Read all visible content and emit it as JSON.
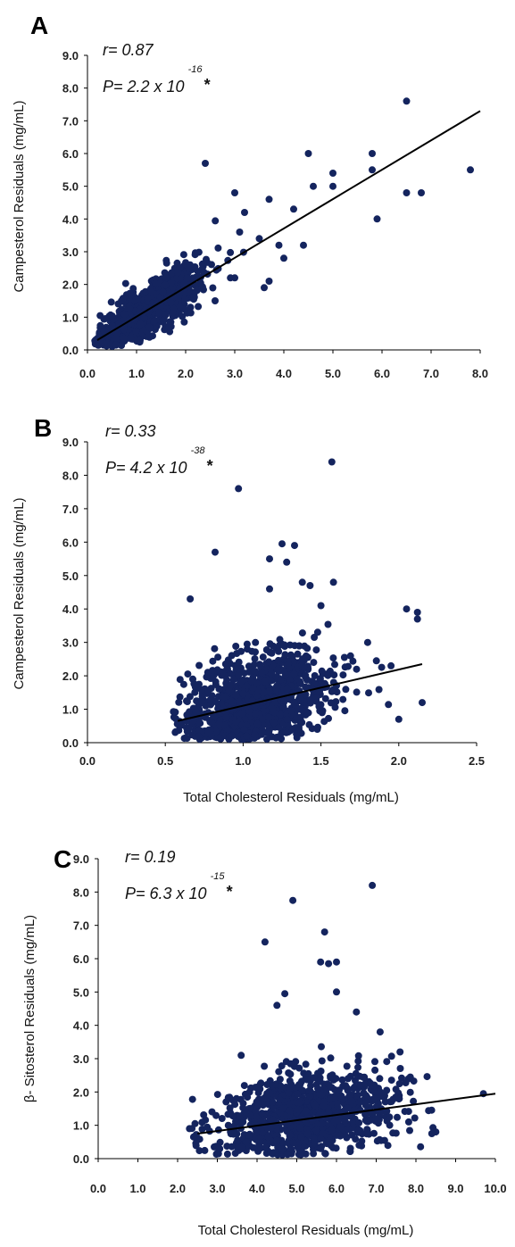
{
  "chart_data": [
    {
      "type": "scatter",
      "panel_label": "A",
      "ylabel": "Campesterol Residuals (mg/mL)",
      "xlabel": "",
      "xlim": [
        0.0,
        8.0
      ],
      "ylim": [
        0.0,
        9.0
      ],
      "xticks": [
        "0.0",
        "1.0",
        "2.0",
        "3.0",
        "4.0",
        "5.0",
        "6.0",
        "7.0",
        "8.0"
      ],
      "yticks": [
        "0.0",
        "1.0",
        "2.0",
        "3.0",
        "4.0",
        "5.0",
        "6.0",
        "7.0",
        "8.0",
        "9.0"
      ],
      "stat_r": "r= 0.87",
      "stat_p": "P= 2.2 x 10",
      "stat_p_exp": "-16",
      "stat_star": "*",
      "trendline": {
        "x": [
          0.2,
          8.0
        ],
        "y": [
          0.3,
          7.3
        ]
      },
      "series": [
        {
          "generated": {
            "n": 900,
            "x_center": 1.25,
            "x_spread": 0.55,
            "x_min": 0.15,
            "x_max": 3.6,
            "slope": 0.95,
            "intercept": 0.05,
            "noise": 0.38,
            "y_min": 0.1,
            "y_max": 4.6,
            "seed": 11
          },
          "points": [
            [
              6.5,
              7.6
            ],
            [
              7.8,
              5.5
            ],
            [
              6.8,
              4.8
            ],
            [
              6.5,
              4.8
            ],
            [
              5.9,
              4.0
            ],
            [
              5.8,
              6.0
            ],
            [
              5.8,
              5.5
            ],
            [
              5.0,
              5.4
            ],
            [
              5.0,
              5.0
            ],
            [
              4.5,
              6.0
            ],
            [
              4.4,
              3.2
            ],
            [
              4.6,
              5.0
            ],
            [
              2.4,
              5.7
            ],
            [
              3.7,
              4.6
            ],
            [
              3.5,
              3.4
            ],
            [
              3.9,
              3.2
            ],
            [
              4.0,
              2.8
            ],
            [
              3.0,
              2.2
            ],
            [
              2.6,
              1.5
            ],
            [
              3.6,
              1.9
            ],
            [
              3.2,
              4.2
            ],
            [
              3.1,
              3.6
            ],
            [
              4.2,
              4.3
            ],
            [
              3.0,
              4.8
            ],
            [
              3.7,
              2.1
            ],
            [
              2.1,
              1.3
            ]
          ]
        }
      ]
    },
    {
      "type": "scatter",
      "panel_label": "B",
      "ylabel": "Campesterol Residuals (mg/mL)",
      "xlabel": "Total Cholesterol Residuals (mg/mL)",
      "xlim": [
        0.0,
        2.5
      ],
      "ylim": [
        0.0,
        9.0
      ],
      "xticks": [
        "0.0",
        "0.5",
        "1.0",
        "1.5",
        "2.0",
        "2.5"
      ],
      "yticks": [
        "0.0",
        "1.0",
        "2.0",
        "3.0",
        "4.0",
        "5.0",
        "6.0",
        "7.0",
        "8.0",
        "9.0"
      ],
      "stat_r": "r= 0.33",
      "stat_p": "P= 4.2 x 10",
      "stat_p_exp": "-38",
      "stat_star": "*",
      "trendline": {
        "x": [
          0.58,
          2.15
        ],
        "y": [
          0.65,
          2.35
        ]
      },
      "series": [
        {
          "generated": {
            "n": 1000,
            "x_center": 1.08,
            "x_spread": 0.25,
            "x_min": 0.55,
            "x_max": 2.15,
            "slope": 1.05,
            "intercept": 0.1,
            "noise": 0.7,
            "y_min": 0.1,
            "y_max": 4.5,
            "seed": 23
          },
          "points": [
            [
              1.57,
              8.4
            ],
            [
              0.97,
              7.6
            ],
            [
              1.25,
              5.95
            ],
            [
              1.33,
              5.9
            ],
            [
              0.82,
              5.7
            ],
            [
              1.17,
              5.5
            ],
            [
              1.28,
              5.4
            ],
            [
              1.38,
              4.8
            ],
            [
              1.58,
              4.8
            ],
            [
              1.43,
              4.7
            ],
            [
              1.17,
              4.6
            ],
            [
              0.66,
              4.3
            ],
            [
              2.05,
              4.0
            ],
            [
              2.12,
              3.9
            ],
            [
              2.12,
              3.7
            ],
            [
              1.5,
              4.1
            ],
            [
              1.8,
              3.0
            ],
            [
              2.15,
              1.2
            ],
            [
              1.95,
              2.3
            ],
            [
              2.0,
              0.7
            ]
          ]
        }
      ]
    },
    {
      "type": "scatter",
      "panel_label": "C",
      "ylabel": "β- Sitosterol Residuals (mg/mL)",
      "xlabel": "Total Cholesterol Residuals (mg/mL)",
      "xlim": [
        0.0,
        10.0
      ],
      "ylim": [
        0.0,
        9.0
      ],
      "xticks": [
        "0.0",
        "1.0",
        "2.0",
        "3.0",
        "4.0",
        "5.0",
        "6.0",
        "7.0",
        "8.0",
        "9.0",
        "10.0"
      ],
      "yticks": [
        "0.0",
        "1.0",
        "2.0",
        "3.0",
        "4.0",
        "5.0",
        "6.0",
        "7.0",
        "8.0",
        "9.0"
      ],
      "stat_r": "r= 0.19",
      "stat_p": "P= 6.3 x 10",
      "stat_p_exp": "-15",
      "stat_star": "*",
      "trendline": {
        "x": [
          2.5,
          10.0
        ],
        "y": [
          0.75,
          1.95
        ]
      },
      "series": [
        {
          "generated": {
            "n": 1000,
            "x_center": 5.3,
            "x_spread": 1.1,
            "x_min": 2.3,
            "x_max": 8.6,
            "slope": 0.15,
            "intercept": 0.5,
            "noise": 0.6,
            "y_min": 0.1,
            "y_max": 4.0,
            "seed": 37
          },
          "points": [
            [
              6.9,
              8.2
            ],
            [
              4.9,
              7.75
            ],
            [
              5.7,
              6.8
            ],
            [
              4.2,
              6.5
            ],
            [
              6.0,
              5.9
            ],
            [
              5.8,
              5.85
            ],
            [
              5.6,
              5.9
            ],
            [
              4.7,
              4.95
            ],
            [
              6.0,
              5.0
            ],
            [
              4.5,
              4.6
            ],
            [
              6.5,
              4.4
            ],
            [
              9.7,
              1.95
            ],
            [
              8.5,
              0.8
            ],
            [
              8.4,
              0.75
            ],
            [
              2.3,
              0.9
            ],
            [
              7.6,
              3.2
            ],
            [
              3.6,
              3.1
            ],
            [
              7.1,
              3.8
            ]
          ]
        }
      ]
    }
  ]
}
